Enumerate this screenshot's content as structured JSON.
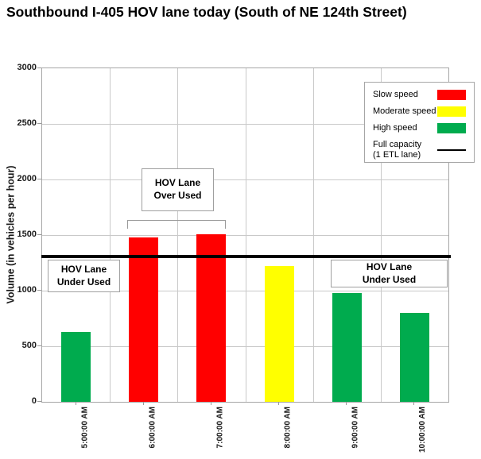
{
  "title": "Southbound I-405 HOV lane today (South of NE 124th Street)",
  "chart_data": {
    "type": "bar",
    "title": "Southbound I-405 HOV lane today (South of NE 124th Street)",
    "categories": [
      "5:00:00 AM",
      "6:00:00 AM",
      "7:00:00 AM",
      "8:00:00 AM",
      "9:00:00 AM",
      "10:00:00 AM"
    ],
    "values": [
      630,
      1480,
      1510,
      1220,
      980,
      800
    ],
    "speed_class": [
      "high",
      "slow",
      "slow",
      "moderate",
      "high",
      "high"
    ],
    "full_capacity_line": 1300,
    "xlabel": "",
    "ylabel": "Volume (in vehicles per hour)",
    "ylim": [
      0,
      3000
    ],
    "ytick_step": 500,
    "grid": true,
    "legend_position": "top-right",
    "over_used_bar_indexes": [
      1,
      2
    ]
  },
  "colors": {
    "slow": "#FF0000",
    "moderate": "#FFFF00",
    "high": "#00AB4E",
    "full_capacity": "#000000",
    "gridline": "#C9C9C9",
    "axis_border": "#A6A6A6"
  },
  "legend": {
    "items": [
      {
        "key": "slow",
        "label": "Slow speed"
      },
      {
        "key": "moderate",
        "label": "Moderate speed"
      },
      {
        "key": "high",
        "label": "High speed"
      },
      {
        "key": "full_capacity",
        "label": "Full capacity",
        "label2": "(1 ETL lane)"
      }
    ]
  },
  "annotations": {
    "over_used": {
      "line1": "HOV Lane",
      "line2": "Over Used"
    },
    "under_used_left": {
      "line1": "HOV Lane",
      "line2": "Under Used"
    },
    "under_used_right": {
      "line1": "HOV Lane",
      "line2": "Under Used"
    }
  }
}
